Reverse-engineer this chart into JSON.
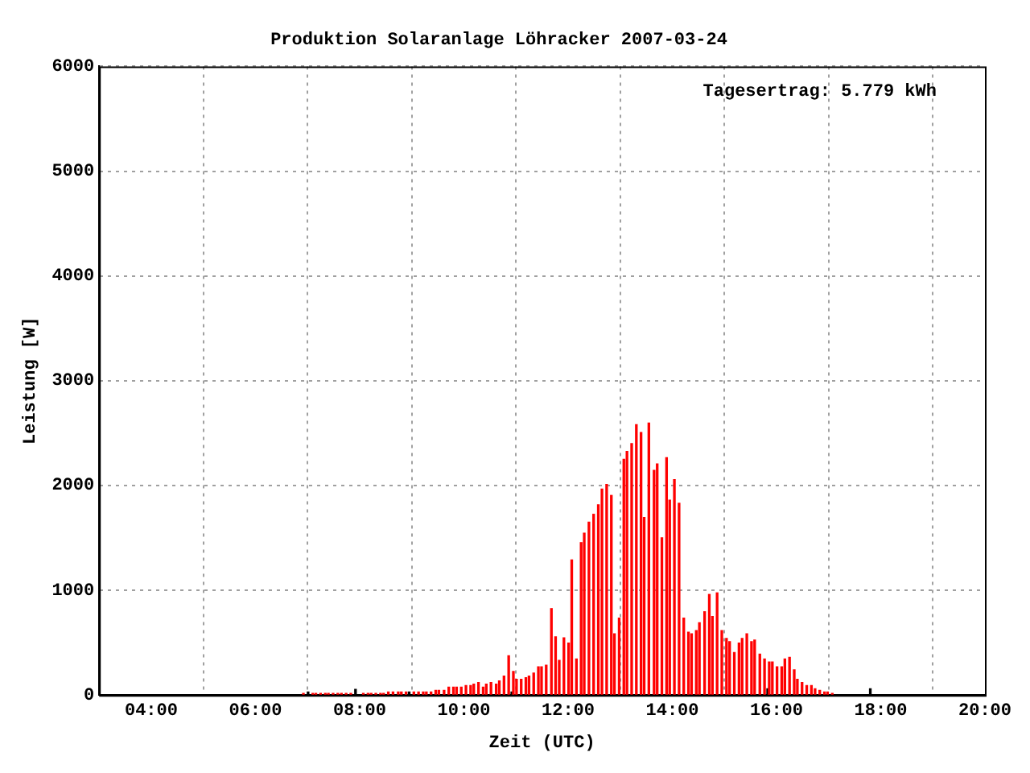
{
  "chart_data": {
    "type": "bar",
    "title": "Produktion Solaranlage Löhracker 2007-03-24",
    "xlabel": "Zeit (UTC)",
    "ylabel": "Leistung [W]",
    "annotations": [
      "Tagesertrag: 5.779 kWh"
    ],
    "x": [
      6.92,
      7.01,
      7.1,
      7.16,
      7.25,
      7.34,
      7.4,
      7.49,
      7.58,
      7.65,
      7.74,
      7.83,
      7.92,
      8.07,
      8.16,
      8.22,
      8.31,
      8.4,
      8.46,
      8.55,
      8.64,
      8.74,
      8.8,
      8.89,
      8.95,
      9.04,
      9.13,
      9.22,
      9.28,
      9.37,
      9.46,
      9.52,
      9.62,
      9.71,
      9.8,
      9.86,
      9.95,
      10.04,
      10.13,
      10.19,
      10.28,
      10.37,
      10.43,
      10.52,
      10.62,
      10.68,
      10.77,
      10.86,
      10.92,
      10.95,
      11.01,
      11.1,
      11.19,
      11.25,
      11.34,
      11.43,
      11.49,
      11.58,
      11.68,
      11.76,
      11.83,
      11.92,
      12.01,
      12.07,
      12.16,
      12.25,
      12.31,
      12.4,
      12.49,
      12.58,
      12.65,
      12.74,
      12.83,
      12.89,
      12.98,
      13.07,
      13.13,
      13.22,
      13.31,
      13.4,
      13.46,
      13.55,
      13.65,
      13.71,
      13.8,
      13.89,
      13.95,
      14.04,
      14.13,
      14.22,
      14.31,
      14.37,
      14.46,
      14.52,
      14.62,
      14.71,
      14.77,
      14.86,
      14.95,
      15.04,
      15.1,
      15.19,
      15.28,
      15.34,
      15.43,
      15.52,
      15.58,
      15.68,
      15.77,
      15.83,
      15.86,
      15.92,
      16.01,
      16.1,
      16.16,
      16.25,
      16.34,
      16.4,
      16.49,
      16.58,
      16.67,
      16.74,
      16.83,
      16.92,
      16.98,
      17.07,
      17.8
    ],
    "values": [
      15,
      30,
      15,
      15,
      15,
      15,
      15,
      15,
      15,
      15,
      15,
      15,
      55,
      15,
      15,
      15,
      15,
      15,
      15,
      30,
      30,
      30,
      30,
      30,
      30,
      30,
      30,
      30,
      30,
      30,
      45,
      45,
      45,
      75,
      75,
      75,
      75,
      90,
      90,
      105,
      120,
      75,
      105,
      120,
      105,
      135,
      180,
      375,
      30,
      225,
      150,
      150,
      165,
      180,
      210,
      270,
      270,
      285,
      825,
      555,
      330,
      545,
      495,
      1290,
      345,
      1455,
      1545,
      1650,
      1725,
      1815,
      1965,
      2010,
      1905,
      585,
      735,
      2250,
      2325,
      2400,
      2580,
      2505,
      1695,
      2595,
      2145,
      2205,
      1500,
      2265,
      1860,
      2055,
      1830,
      735,
      600,
      585,
      615,
      690,
      795,
      960,
      750,
      975,
      615,
      540,
      510,
      405,
      495,
      540,
      585,
      510,
      525,
      390,
      345,
      60,
      315,
      315,
      270,
      270,
      345,
      360,
      240,
      150,
      120,
      90,
      90,
      60,
      45,
      30,
      30,
      15,
      60
    ],
    "colors": [
      "#ff0000",
      "#000000",
      "#ff0000",
      "#ff0000",
      "#ff0000",
      "#ff0000",
      "#ff0000",
      "#ff0000",
      "#ff0000",
      "#ff0000",
      "#ff0000",
      "#ff0000",
      "#000000",
      "#ff0000",
      "#ff0000",
      "#ff0000",
      "#ff0000",
      "#ff0000",
      "#ff0000",
      "#ff0000",
      "#ff0000",
      "#ff0000",
      "#ff0000",
      "#ff0000",
      "#000000",
      "#ff0000",
      "#ff0000",
      "#ff0000",
      "#ff0000",
      "#ff0000",
      "#ff0000",
      "#ff0000",
      "#ff0000",
      "#ff0000",
      "#ff0000",
      "#ff0000",
      "#ff0000",
      "#ff0000",
      "#ff0000",
      "#ff0000",
      "#ff0000",
      "#ff0000",
      "#ff0000",
      "#ff0000",
      "#ff0000",
      "#ff0000",
      "#ff0000",
      "#ff0000",
      "#000000",
      "#ff0000",
      "#ff0000",
      "#ff0000",
      "#ff0000",
      "#ff0000",
      "#ff0000",
      "#ff0000",
      "#ff0000",
      "#ff0000",
      "#ff0000",
      "#ff0000",
      "#ff0000",
      "#ff0000",
      "#ff0000",
      "#ff0000",
      "#ff0000",
      "#ff0000",
      "#ff0000",
      "#ff0000",
      "#ff0000",
      "#ff0000",
      "#ff0000",
      "#ff0000",
      "#ff0000",
      "#ff0000",
      "#ff0000",
      "#ff0000",
      "#ff0000",
      "#ff0000",
      "#ff0000",
      "#ff0000",
      "#ff0000",
      "#ff0000",
      "#ff0000",
      "#ff0000",
      "#ff0000",
      "#ff0000",
      "#ff0000",
      "#ff0000",
      "#ff0000",
      "#ff0000",
      "#ff0000",
      "#ff0000",
      "#ff0000",
      "#ff0000",
      "#ff0000",
      "#ff0000",
      "#ff0000",
      "#ff0000",
      "#ff0000",
      "#ff0000",
      "#ff0000",
      "#ff0000",
      "#ff0000",
      "#ff0000",
      "#ff0000",
      "#ff0000",
      "#ff0000",
      "#ff0000",
      "#ff0000",
      "#000000",
      "#ff0000",
      "#ff0000",
      "#ff0000",
      "#ff0000",
      "#ff0000",
      "#ff0000",
      "#ff0000",
      "#ff0000",
      "#ff0000",
      "#ff0000",
      "#ff0000",
      "#ff0000",
      "#ff0000",
      "#ff0000",
      "#ff0000",
      "#ff0000",
      "#000000"
    ],
    "xlim": [
      3,
      20
    ],
    "xticks": [
      {
        "value": 4,
        "label": "04:00"
      },
      {
        "value": 6,
        "label": "06:00"
      },
      {
        "value": 8,
        "label": "08:00"
      },
      {
        "value": 10,
        "label": "10:00"
      },
      {
        "value": 12,
        "label": "12:00"
      },
      {
        "value": 14,
        "label": "14:00"
      },
      {
        "value": 16,
        "label": "16:00"
      },
      {
        "value": 18,
        "label": "18:00"
      },
      {
        "value": 20,
        "label": "20:00"
      }
    ],
    "ylim": [
      0,
      6000
    ],
    "yticks": [
      0,
      1000,
      2000,
      3000,
      4000,
      5000,
      6000
    ],
    "grid": true,
    "legend": false
  }
}
